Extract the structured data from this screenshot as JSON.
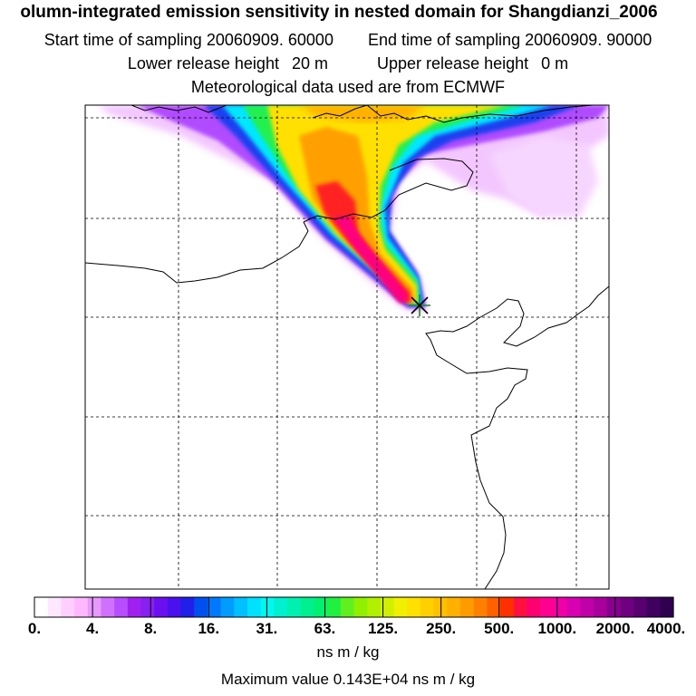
{
  "header": {
    "title": "olumn-integrated emission sensitivity in nested domain for Shangdianzi_2006",
    "start_label": "Start time of sampling",
    "start_value": "20060909. 60000",
    "end_label": "End time of sampling",
    "end_value": "20060909. 90000",
    "lower_label": "Lower release height",
    "lower_value": "20 m",
    "upper_label": "Upper release height",
    "upper_value": "0 m",
    "met_text": "Meteorological data used are from ECMWF"
  },
  "colorbar": {
    "labels": [
      "0.",
      "4.",
      "8.",
      "16.",
      "31.",
      "63.",
      "125.",
      "250.",
      "500.",
      "1000.",
      "2000.",
      "4000."
    ],
    "colors": [
      "#ffffff",
      "#ffe8ff",
      "#ffd0ff",
      "#ffb8ff",
      "#e899ff",
      "#d070ff",
      "#b84cff",
      "#a020f0",
      "#8820f0",
      "#6a10f0",
      "#4a10ee",
      "#2020e8",
      "#0050f0",
      "#0078ff",
      "#009cff",
      "#00c0ff",
      "#00e0ff",
      "#00f8f0",
      "#00f0d0",
      "#00f0b0",
      "#00f090",
      "#00f070",
      "#20f040",
      "#60f020",
      "#90f000",
      "#b0f000",
      "#d0f000",
      "#f0f000",
      "#ffe000",
      "#ffd000",
      "#ffc000",
      "#ffb000",
      "#ff9c00",
      "#ff8000",
      "#ff6000",
      "#ff3000",
      "#ff1040",
      "#ff0070",
      "#ff0090",
      "#f000a8",
      "#d800b0",
      "#c000a8",
      "#a8009c",
      "#880090",
      "#700080",
      "#580070",
      "#400060",
      "#300050"
    ],
    "units": "ns m / kg"
  },
  "max_value": {
    "label": "Maximum value",
    "value": "0.143E+04 ns m / kg"
  },
  "map": {
    "receptor_marker": "receptor-star",
    "colors": {
      "coast": "#000000",
      "grid": "#000000",
      "background": "#ffffff"
    }
  }
}
